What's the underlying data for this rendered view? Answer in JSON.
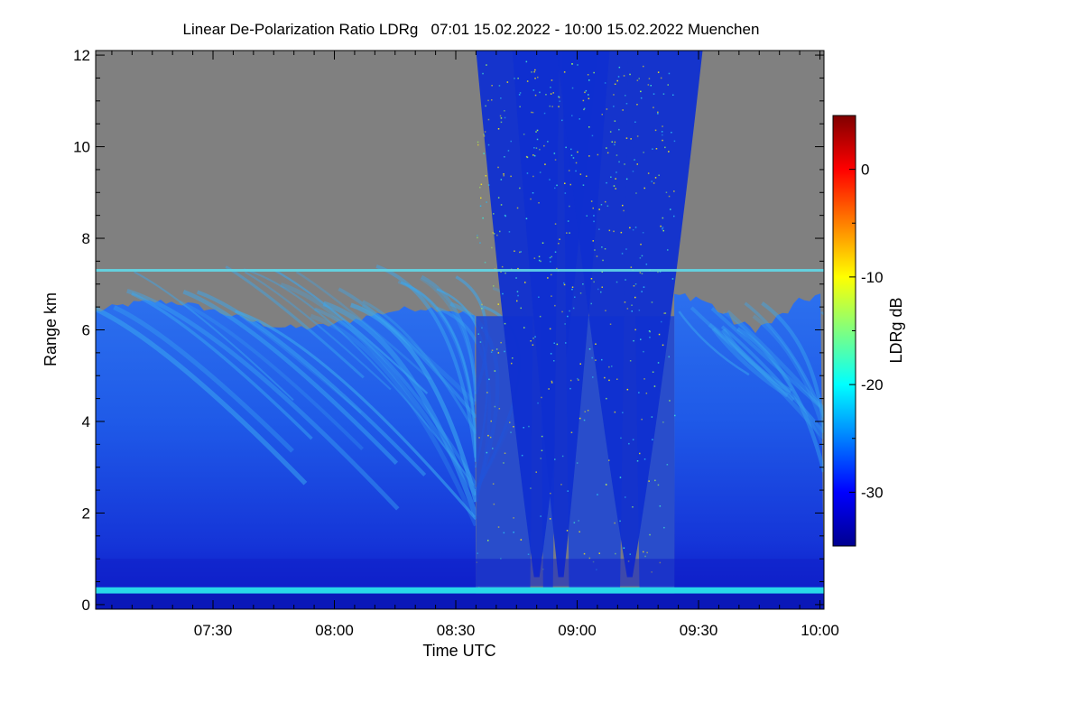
{
  "chart_data": {
    "type": "heatmap",
    "title": "Linear De-Polarization Ratio LDRg   07:01 15.02.2022 - 10:00 15.02.2022 Muenchen",
    "xlabel": "Time UTC",
    "ylabel": "Range km",
    "colorbar_label": "LDRg dB",
    "xlim_minutes": [
      421,
      601
    ],
    "ylim": [
      -0.1,
      12.1
    ],
    "x_ticks": [
      {
        "minute": 450,
        "label": "07:30"
      },
      {
        "minute": 480,
        "label": "08:00"
      },
      {
        "minute": 510,
        "label": "08:30"
      },
      {
        "minute": 540,
        "label": "09:00"
      },
      {
        "minute": 570,
        "label": "09:30"
      },
      {
        "minute": 600,
        "label": "10:00"
      }
    ],
    "y_ticks": [
      0,
      2,
      4,
      6,
      8,
      10,
      12
    ],
    "colorbar_range": [
      -35,
      5
    ],
    "colorbar_ticks": [
      0,
      -10,
      -20,
      -30
    ],
    "colors": {
      "missing": "#808080",
      "background_ldr": "#1a4fe6",
      "low_ldr": "#1020c8",
      "streak_ldr": "#3aa8f0",
      "surface_layer": "#28d8e8",
      "noise_yellow": "#f0e020"
    },
    "features": {
      "cloud_top_km_before_0835": 6.4,
      "cloud_top_km_after_0920": 6.4,
      "artifact_line_km": 7.3,
      "surface_layer_km": 0.3,
      "clear_period_minutes": [
        515,
        564
      ],
      "clear_period_cones": [
        {
          "center_minute": 530,
          "top_half_width": 2.5,
          "bottom_half_width": 0.8
        },
        {
          "center_minute": 536,
          "top_half_width": 2.0,
          "bottom_half_width": 1.0
        },
        {
          "center_minute": 553,
          "top_half_width": 3.0,
          "bottom_half_width": 1.2
        }
      ]
    }
  }
}
